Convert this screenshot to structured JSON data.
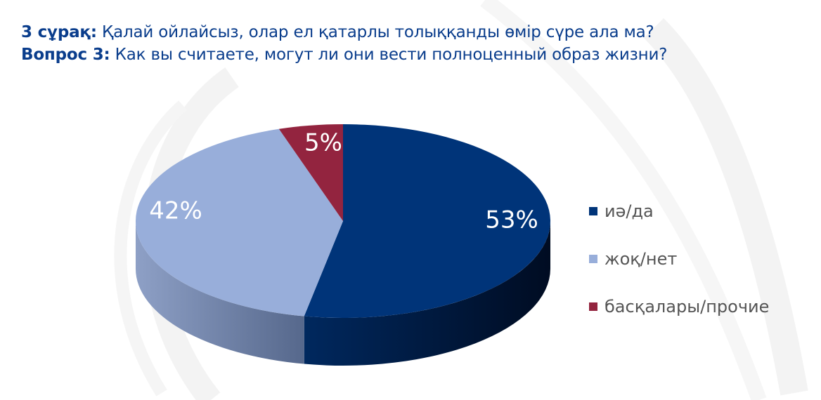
{
  "title": {
    "line1_bold": "3 сұрақ:",
    "line1_text": "Қалай ойлайсыз, олар ел қатарлы толыққанды өмір сүре ала ма?",
    "line2_bold": "Вопрос 3:",
    "line2_text": "Как вы считаете, могут ли они вести полноценный образ жизни?"
  },
  "chart_data": {
    "type": "pie",
    "style": "3d",
    "categories": [
      "иә/да",
      "жоқ/нет",
      "басқалары/прочие"
    ],
    "values": [
      53,
      42,
      5
    ],
    "labels": [
      "53%",
      "42%",
      "5%"
    ],
    "colors": [
      "#003479",
      "#98aeda",
      "#93243f"
    ],
    "legend_position": "right"
  }
}
